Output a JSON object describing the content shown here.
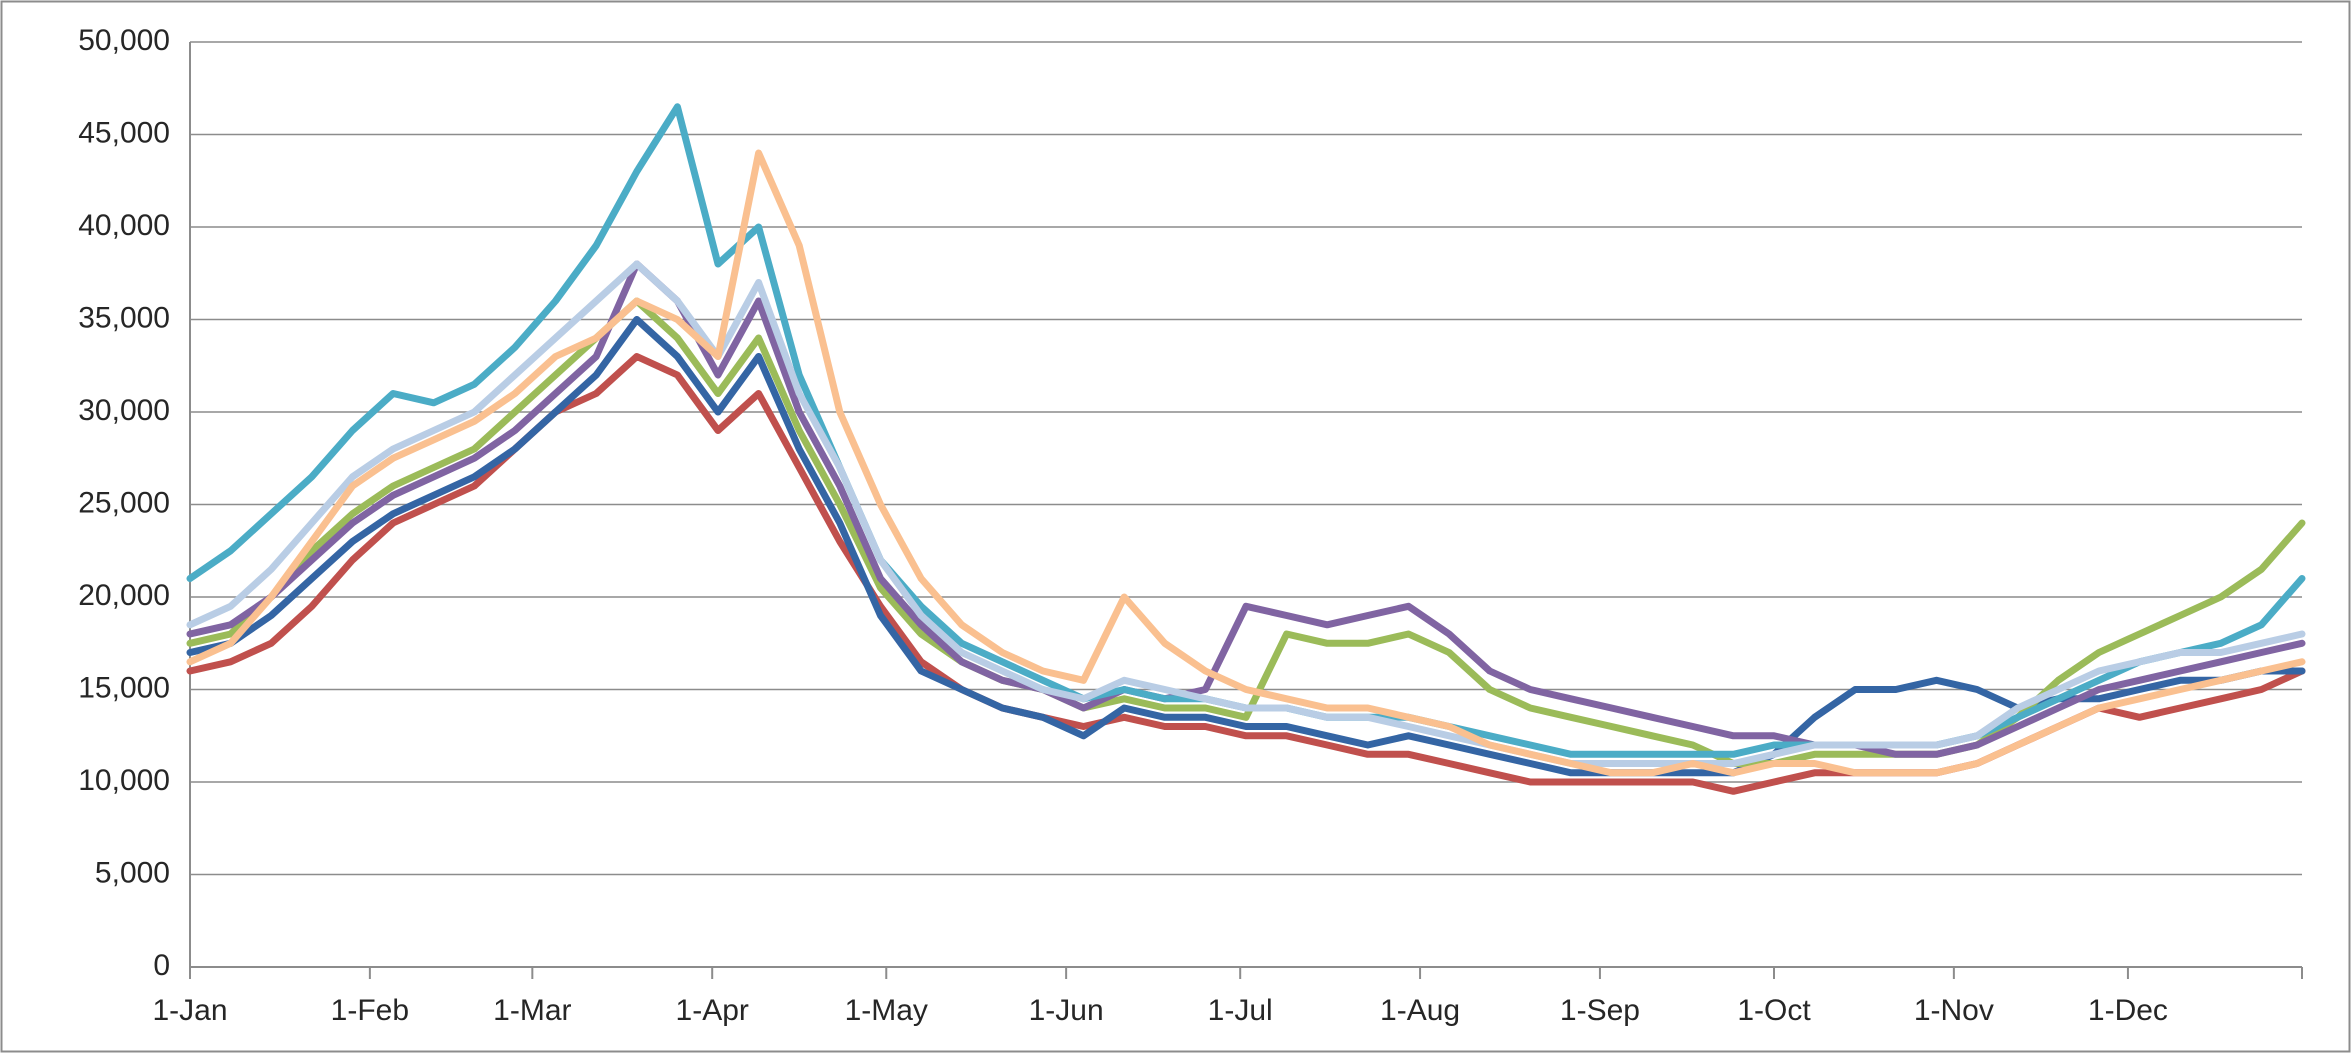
{
  "chart_data": {
    "type": "line",
    "x": [
      0,
      7,
      14,
      21,
      28,
      35,
      42,
      49,
      56,
      63,
      70,
      77,
      84,
      91,
      98,
      105,
      112,
      119,
      126,
      133,
      140,
      147,
      154,
      161,
      168,
      175,
      182,
      189,
      196,
      203,
      210,
      217,
      224,
      231,
      238,
      245,
      252,
      259,
      266,
      273,
      280,
      287,
      294,
      301,
      308,
      315,
      322,
      329,
      336,
      343,
      350,
      357,
      364
    ],
    "xlim": [
      0,
      364
    ],
    "xticks": [
      {
        "value": 0,
        "label": "1-Jan"
      },
      {
        "value": 31,
        "label": "1-Feb"
      },
      {
        "value": 59,
        "label": "1-Mar"
      },
      {
        "value": 90,
        "label": "1-Apr"
      },
      {
        "value": 120,
        "label": "1-May"
      },
      {
        "value": 151,
        "label": "1-Jun"
      },
      {
        "value": 181,
        "label": "1-Jul"
      },
      {
        "value": 212,
        "label": "1-Aug"
      },
      {
        "value": 243,
        "label": "1-Sep"
      },
      {
        "value": 273,
        "label": "1-Oct"
      },
      {
        "value": 304,
        "label": "1-Nov"
      },
      {
        "value": 334,
        "label": "1-Dec"
      }
    ],
    "ylim": [
      0,
      50000
    ],
    "yticks": [
      0,
      {
        "value": 5000,
        "label": "5,000"
      },
      {
        "value": 10000,
        "label": "10,000"
      },
      {
        "value": 15000,
        "label": "15,000"
      },
      {
        "value": 20000,
        "label": "20,000"
      },
      {
        "value": 25000,
        "label": "25,000"
      },
      {
        "value": 30000,
        "label": "30,000"
      },
      {
        "value": 35000,
        "label": "35,000"
      },
      {
        "value": 40000,
        "label": "40,000"
      },
      {
        "value": 45000,
        "label": "45,000"
      },
      {
        "value": 50000,
        "label": "50,000"
      }
    ],
    "grid": true,
    "series": [
      {
        "color": "#c0504d",
        "values": [
          16000,
          16500,
          17500,
          19500,
          22000,
          24000,
          25000,
          26000,
          28000,
          30000,
          31000,
          33000,
          32000,
          29000,
          31000,
          27000,
          23000,
          19500,
          16500,
          15000,
          14000,
          13500,
          13000,
          13500,
          13000,
          13000,
          12500,
          12500,
          12000,
          11500,
          11500,
          11000,
          10500,
          10000,
          10000,
          10000,
          10000,
          10000,
          9500,
          10000,
          10500,
          10500,
          10500,
          10500,
          11000,
          12000,
          13000,
          14000,
          13500,
          14000,
          14500,
          15000,
          16000
        ]
      },
      {
        "color": "#3465a4",
        "values": [
          17000,
          17500,
          19000,
          21000,
          23000,
          24500,
          25500,
          26500,
          28000,
          30000,
          32000,
          35000,
          33000,
          30000,
          33000,
          28000,
          24000,
          19000,
          16000,
          15000,
          14000,
          13500,
          12500,
          14000,
          13500,
          13500,
          13000,
          13000,
          12500,
          12000,
          12500,
          12000,
          11500,
          11000,
          10500,
          10500,
          10500,
          10500,
          10500,
          11500,
          13500,
          15000,
          15000,
          15500,
          15000,
          14000,
          14500,
          14500,
          15000,
          15500,
          15500,
          16000,
          16000
        ]
      },
      {
        "color": "#9bbb59",
        "values": [
          17500,
          18000,
          20000,
          22500,
          24500,
          26000,
          27000,
          28000,
          30000,
          32000,
          34000,
          36000,
          34000,
          31000,
          34000,
          29000,
          25000,
          20500,
          18000,
          16500,
          15500,
          15000,
          14000,
          14500,
          14000,
          14000,
          13500,
          18000,
          17500,
          17500,
          18000,
          17000,
          15000,
          14000,
          13500,
          13000,
          12500,
          12000,
          11000,
          11000,
          11500,
          11500,
          11500,
          11500,
          12000,
          13500,
          15500,
          17000,
          18000,
          19000,
          20000,
          21500,
          24000
        ]
      },
      {
        "color": "#8064a2",
        "values": [
          18000,
          18500,
          20000,
          22000,
          24000,
          25500,
          26500,
          27500,
          29000,
          31000,
          33000,
          38000,
          36000,
          32000,
          36000,
          30000,
          26000,
          21000,
          18500,
          16500,
          15500,
          15000,
          14000,
          15000,
          14500,
          15000,
          19500,
          19000,
          18500,
          19000,
          19500,
          18000,
          16000,
          15000,
          14500,
          14000,
          13500,
          13000,
          12500,
          12500,
          12000,
          12000,
          11500,
          11500,
          12000,
          13000,
          14000,
          15000,
          15500,
          16000,
          16500,
          17000,
          17500
        ]
      },
      {
        "color": "#4bacc6",
        "values": [
          21000,
          22500,
          24500,
          26500,
          29000,
          31000,
          30500,
          31500,
          33500,
          36000,
          39000,
          43000,
          46500,
          38000,
          40000,
          32000,
          27000,
          22000,
          19500,
          17500,
          16500,
          15500,
          14500,
          15000,
          14500,
          14500,
          14000,
          14000,
          13500,
          13500,
          13500,
          13000,
          12500,
          12000,
          11500,
          11500,
          11500,
          11500,
          11500,
          12000,
          12000,
          12000,
          12000,
          12000,
          12500,
          13500,
          14500,
          15500,
          16500,
          17000,
          17500,
          18500,
          21000
        ]
      },
      {
        "color": "#b9cde5",
        "values": [
          18500,
          19500,
          21500,
          24000,
          26500,
          28000,
          29000,
          30000,
          32000,
          34000,
          36000,
          38000,
          36000,
          33000,
          37000,
          31000,
          27000,
          22000,
          19000,
          17000,
          16000,
          15000,
          14500,
          15500,
          15000,
          14500,
          14000,
          14000,
          13500,
          13500,
          13000,
          12500,
          12000,
          11500,
          11000,
          11000,
          11000,
          11000,
          11000,
          11500,
          12000,
          12000,
          12000,
          12000,
          12500,
          14000,
          15000,
          16000,
          16500,
          17000,
          17000,
          17500,
          18000
        ]
      },
      {
        "color": "#fac090",
        "values": [
          16500,
          17500,
          20000,
          23000,
          26000,
          27500,
          28500,
          29500,
          31000,
          33000,
          34000,
          36000,
          35000,
          33000,
          44000,
          39000,
          30000,
          25000,
          21000,
          18500,
          17000,
          16000,
          15500,
          20000,
          17500,
          16000,
          15000,
          14500,
          14000,
          14000,
          13500,
          13000,
          12000,
          11500,
          11000,
          10500,
          10500,
          11000,
          10500,
          11000,
          11000,
          10500,
          10500,
          10500,
          11000,
          12000,
          13000,
          14000,
          14500,
          15000,
          15500,
          16000,
          16500
        ]
      }
    ]
  }
}
